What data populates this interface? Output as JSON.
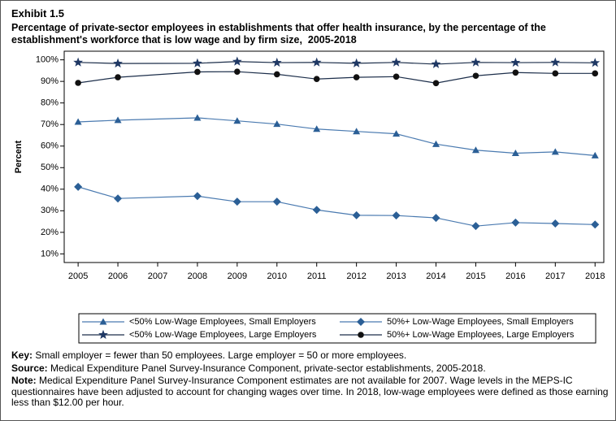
{
  "exhibit": "Exhibit 1.5",
  "chart_data": {
    "type": "line",
    "title": "Percentage of private-sector employees in establishments that offer health insurance, by the percentage of the establishment's workforce that is low wage and by firm size,  2005-2018",
    "ylabel": "Percent",
    "x": [
      2005,
      2006,
      2008,
      2009,
      2010,
      2011,
      2012,
      2013,
      2014,
      2015,
      2016,
      2017,
      2018
    ],
    "xlim": [
      2004.65,
      2018.22
    ],
    "xticks": [
      2005,
      2006,
      2007,
      2008,
      2009,
      2010,
      2011,
      2012,
      2013,
      2014,
      2015,
      2016,
      2017,
      2018
    ],
    "ylim": [
      6,
      104
    ],
    "yticks": [
      {
        "value": 10,
        "label": "10%"
      },
      {
        "value": 20,
        "label": "20%"
      },
      {
        "value": 30,
        "label": "30%"
      },
      {
        "value": 40,
        "label": "40%"
      },
      {
        "value": 50,
        "label": "50%"
      },
      {
        "value": 60,
        "label": "60%"
      },
      {
        "value": 70,
        "label": "70%"
      },
      {
        "value": 80,
        "label": "80%"
      },
      {
        "value": 90,
        "label": "90%"
      },
      {
        "value": 100,
        "label": "100%"
      }
    ],
    "grid": false,
    "series": [
      {
        "name": "<50% Low-Wage Employees, Small Employers",
        "color": "#4a7ab0",
        "marker": "triangle",
        "marker_color": "#2b5f96",
        "values": [
          71.2,
          72.0,
          73.1,
          71.7,
          70.2,
          67.9,
          66.8,
          65.7,
          60.9,
          58.1,
          56.7,
          57.3,
          55.6
        ]
      },
      {
        "name": "50%+ Low-Wage Employees, Small Employers",
        "color": "#4a7ab0",
        "marker": "diamond",
        "marker_color": "#2b5f96",
        "values": [
          41.1,
          35.7,
          36.8,
          34.2,
          34.2,
          30.4,
          27.9,
          27.8,
          26.7,
          22.9,
          24.5,
          24.1,
          23.6
        ]
      },
      {
        "name": "<50% Low-Wage Employees, Large Employers",
        "color": "#1c2e4a",
        "marker": "star",
        "marker_color": "#1f3864",
        "values": [
          98.8,
          98.3,
          98.4,
          99.2,
          98.7,
          98.8,
          98.4,
          98.8,
          98.0,
          98.8,
          98.7,
          98.8,
          98.6
        ]
      },
      {
        "name": "50%+ Low-Wage Employees, Large Employers",
        "color": "#1c2e4a",
        "marker": "circle",
        "marker_color": "#111111",
        "values": [
          89.3,
          91.9,
          94.4,
          94.5,
          93.3,
          91.1,
          91.9,
          92.2,
          89.2,
          92.6,
          94.1,
          93.7,
          93.7
        ]
      }
    ]
  },
  "notes": [
    {
      "label": "Key:",
      "text": "Small employer = fewer than 50 employees. Large employer = 50 or more employees."
    },
    {
      "label": "Source:",
      "text": "Medical Expenditure Panel Survey-Insurance Component, private-sector establishments, 2005-2018."
    },
    {
      "label": "Note:",
      "text": "Medical Expenditure Panel Survey-Insurance Component estimates are not available for 2007. Wage levels in the MEPS-IC questionnaires have been adjusted to account for changing wages over time. In 2018, low-wage employees were defined as those earning less than $12.00 per hour."
    }
  ]
}
